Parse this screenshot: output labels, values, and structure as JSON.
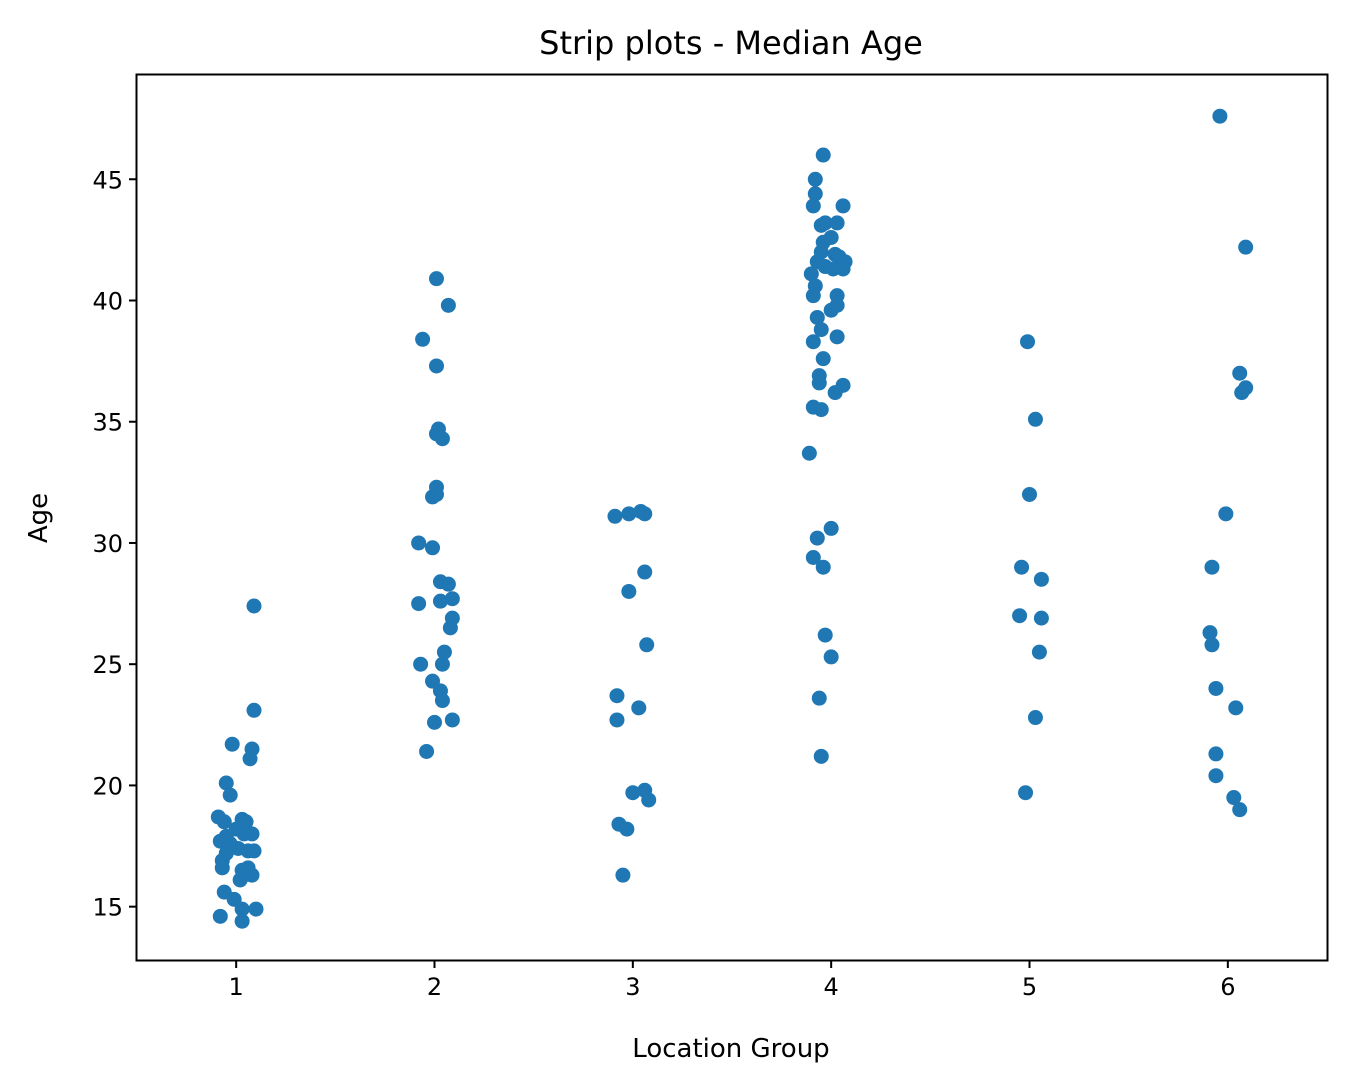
{
  "chart_data": {
    "type": "scatter",
    "style": "strip",
    "title": "Strip plots - Median Age",
    "xlabel": "Location Group",
    "ylabel": "Age",
    "xlim": [
      0.5,
      6.5
    ],
    "ylim": [
      12.8,
      49.3
    ],
    "x_ticks": [
      1,
      2,
      3,
      4,
      5,
      6
    ],
    "y_ticks": [
      15,
      20,
      25,
      30,
      35,
      40,
      45
    ],
    "grid": false,
    "legend": "none",
    "marker_color": "#1f77b4",
    "series": [
      {
        "points": [
          [
            1.09,
            27.4
          ],
          [
            1.09,
            23.1
          ],
          [
            0.98,
            21.7
          ],
          [
            1.08,
            21.5
          ],
          [
            1.07,
            21.1
          ],
          [
            0.95,
            20.1
          ],
          [
            0.97,
            19.6
          ],
          [
            0.91,
            18.7
          ],
          [
            0.94,
            18.5
          ],
          [
            1.03,
            18.6
          ],
          [
            1.05,
            18.5
          ],
          [
            1.0,
            18.2
          ],
          [
            1.04,
            18.0
          ],
          [
            1.08,
            18.0
          ],
          [
            0.95,
            17.9
          ],
          [
            0.92,
            17.7
          ],
          [
            0.97,
            17.6
          ],
          [
            1.01,
            17.4
          ],
          [
            1.06,
            17.3
          ],
          [
            1.09,
            17.3
          ],
          [
            0.95,
            17.2
          ],
          [
            0.93,
            16.9
          ],
          [
            0.93,
            16.6
          ],
          [
            1.03,
            16.5
          ],
          [
            1.06,
            16.6
          ],
          [
            1.08,
            16.3
          ],
          [
            1.04,
            16.3
          ],
          [
            1.02,
            16.1
          ],
          [
            0.94,
            15.6
          ],
          [
            0.99,
            15.3
          ],
          [
            1.03,
            14.9
          ],
          [
            1.1,
            14.9
          ],
          [
            0.92,
            14.6
          ],
          [
            1.03,
            14.4
          ]
        ]
      },
      {
        "points": [
          [
            2.01,
            40.9
          ],
          [
            2.07,
            39.8
          ],
          [
            1.94,
            38.4
          ],
          [
            2.01,
            37.3
          ],
          [
            2.02,
            34.7
          ],
          [
            2.01,
            34.5
          ],
          [
            2.04,
            34.3
          ],
          [
            2.01,
            32.3
          ],
          [
            1.99,
            31.9
          ],
          [
            2.01,
            32.0
          ],
          [
            1.92,
            30.0
          ],
          [
            1.99,
            29.8
          ],
          [
            2.03,
            28.4
          ],
          [
            2.07,
            28.3
          ],
          [
            1.92,
            27.5
          ],
          [
            2.03,
            27.6
          ],
          [
            2.09,
            27.7
          ],
          [
            2.09,
            26.9
          ],
          [
            2.08,
            26.5
          ],
          [
            2.05,
            25.5
          ],
          [
            1.93,
            25.0
          ],
          [
            2.04,
            25.0
          ],
          [
            1.99,
            24.3
          ],
          [
            2.03,
            23.9
          ],
          [
            2.04,
            23.5
          ],
          [
            2.0,
            22.6
          ],
          [
            2.09,
            22.7
          ],
          [
            1.96,
            21.4
          ]
        ]
      },
      {
        "points": [
          [
            2.91,
            31.1
          ],
          [
            2.98,
            31.2
          ],
          [
            3.04,
            31.3
          ],
          [
            3.06,
            31.2
          ],
          [
            3.06,
            28.8
          ],
          [
            2.98,
            28.0
          ],
          [
            3.07,
            25.8
          ],
          [
            2.92,
            23.7
          ],
          [
            3.03,
            23.2
          ],
          [
            2.92,
            22.7
          ],
          [
            3.0,
            19.7
          ],
          [
            3.06,
            19.8
          ],
          [
            3.08,
            19.4
          ],
          [
            2.93,
            18.4
          ],
          [
            2.97,
            18.2
          ],
          [
            2.95,
            16.3
          ]
        ]
      },
      {
        "points": [
          [
            3.96,
            46.0
          ],
          [
            3.92,
            45.0
          ],
          [
            3.92,
            44.4
          ],
          [
            3.91,
            43.9
          ],
          [
            4.06,
            43.9
          ],
          [
            3.95,
            43.1
          ],
          [
            3.97,
            43.2
          ],
          [
            4.03,
            43.2
          ],
          [
            3.96,
            42.4
          ],
          [
            4.0,
            42.6
          ],
          [
            3.95,
            42.0
          ],
          [
            4.02,
            41.9
          ],
          [
            4.04,
            41.8
          ],
          [
            3.93,
            41.6
          ],
          [
            4.07,
            41.6
          ],
          [
            3.97,
            41.4
          ],
          [
            3.9,
            41.1
          ],
          [
            4.01,
            41.3
          ],
          [
            4.06,
            41.3
          ],
          [
            3.92,
            40.6
          ],
          [
            4.03,
            40.2
          ],
          [
            3.91,
            40.2
          ],
          [
            4.03,
            39.8
          ],
          [
            4.0,
            39.6
          ],
          [
            3.93,
            39.3
          ],
          [
            3.95,
            38.8
          ],
          [
            3.91,
            38.3
          ],
          [
            4.03,
            38.5
          ],
          [
            3.96,
            37.6
          ],
          [
            3.94,
            36.9
          ],
          [
            3.94,
            36.6
          ],
          [
            4.06,
            36.5
          ],
          [
            4.02,
            36.2
          ],
          [
            3.91,
            35.6
          ],
          [
            3.95,
            35.5
          ],
          [
            3.89,
            33.7
          ],
          [
            4.0,
            30.6
          ],
          [
            3.93,
            30.2
          ],
          [
            3.91,
            29.4
          ],
          [
            3.96,
            29.0
          ],
          [
            3.97,
            26.2
          ],
          [
            4.0,
            25.3
          ],
          [
            3.94,
            23.6
          ],
          [
            3.95,
            21.2
          ]
        ]
      },
      {
        "points": [
          [
            4.99,
            38.3
          ],
          [
            5.03,
            35.1
          ],
          [
            5.0,
            32.0
          ],
          [
            4.96,
            29.0
          ],
          [
            5.06,
            28.5
          ],
          [
            4.95,
            27.0
          ],
          [
            5.06,
            26.9
          ],
          [
            5.05,
            25.5
          ],
          [
            5.03,
            22.8
          ],
          [
            4.98,
            19.7
          ]
        ]
      },
      {
        "points": [
          [
            5.96,
            47.6
          ],
          [
            6.09,
            42.2
          ],
          [
            6.06,
            37.0
          ],
          [
            6.09,
            36.4
          ],
          [
            6.07,
            36.2
          ],
          [
            5.99,
            31.2
          ],
          [
            5.92,
            29.0
          ],
          [
            5.91,
            26.3
          ],
          [
            5.92,
            25.8
          ],
          [
            5.94,
            24.0
          ],
          [
            6.04,
            23.2
          ],
          [
            5.94,
            21.3
          ],
          [
            5.94,
            20.4
          ],
          [
            6.03,
            19.5
          ],
          [
            6.06,
            19.0
          ]
        ]
      }
    ]
  }
}
